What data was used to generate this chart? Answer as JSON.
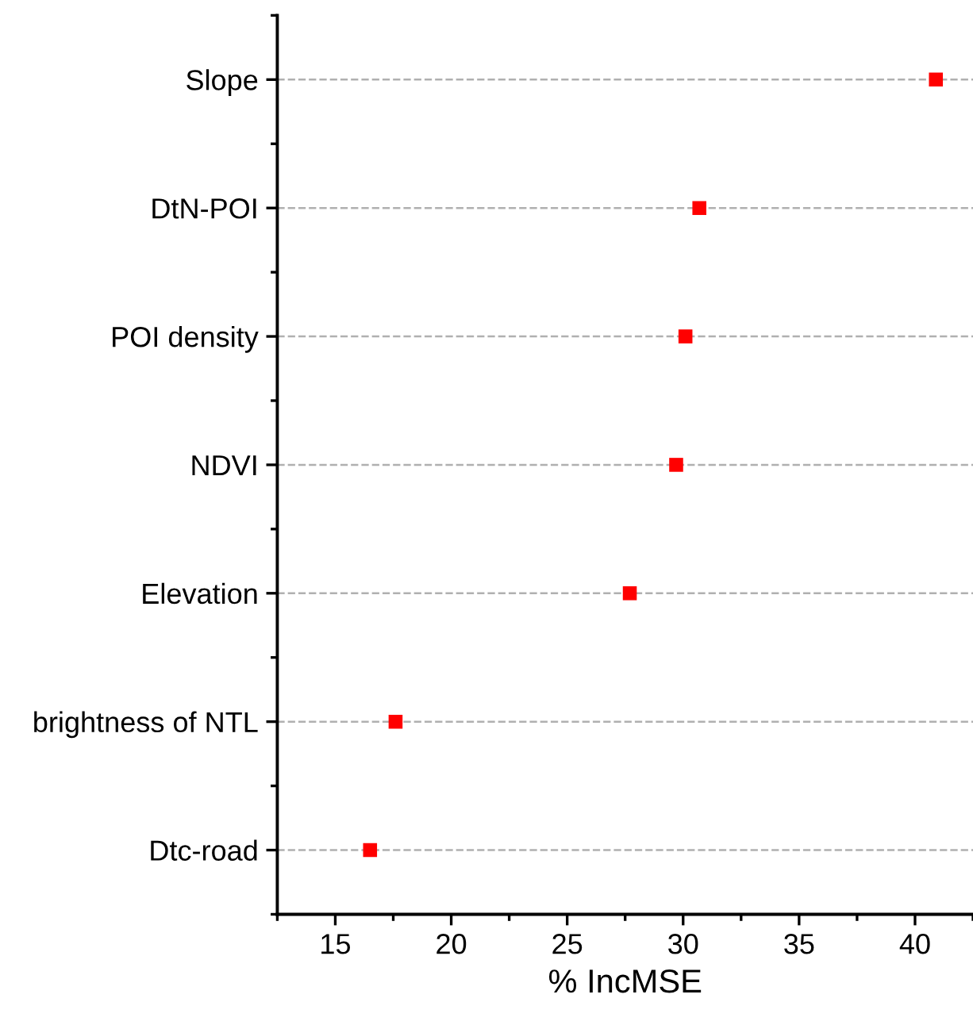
{
  "chart_data": {
    "type": "scatter",
    "orientation": "horizontal",
    "xlabel": "% IncMSE",
    "categories": [
      "Slope",
      "DtN-POI",
      "POI density",
      "NDVI",
      "Elevation",
      "brightness of NTL",
      "Dtc-road"
    ],
    "series": [
      {
        "color": "#ff0000",
        "values": [
          40.9,
          30.7,
          30.1,
          29.7,
          27.7,
          17.6,
          16.5
        ]
      }
    ],
    "xlim": [
      12.5,
      42.5
    ],
    "xticks": [
      15,
      20,
      25,
      30,
      35,
      40
    ],
    "grid": "y",
    "marker": "square",
    "legend": false
  }
}
